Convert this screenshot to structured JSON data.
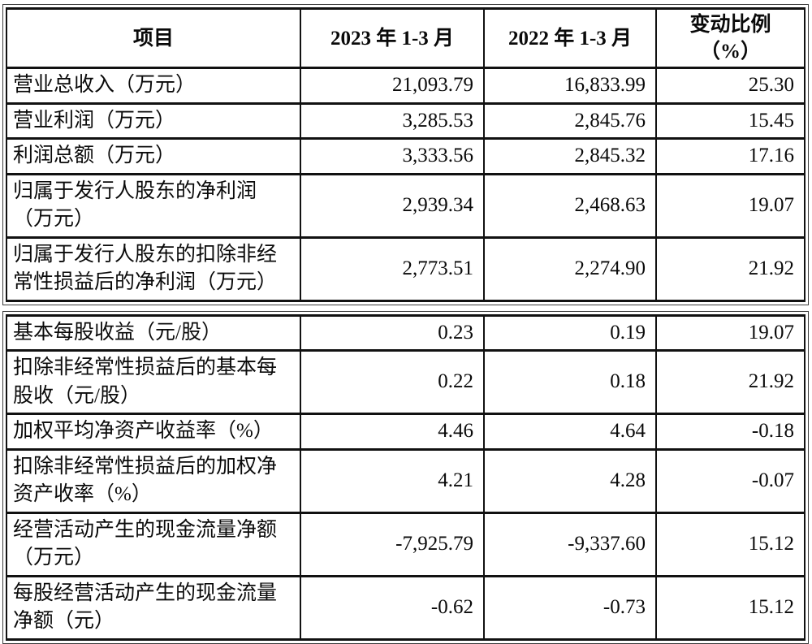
{
  "colors": {
    "grid_border": "#111111",
    "outer_border": "#3d3d3d",
    "text": "#0a0a0a",
    "background": "#ffffff"
  },
  "table1": {
    "columns": [
      "项目",
      "2023 年 1-3 月",
      "2022 年 1-3 月",
      "变动比例\n（%）"
    ],
    "rows": [
      {
        "label": "营业总收入（万元）",
        "y2023": "21,093.79",
        "y2022": "16,833.99",
        "change": "25.30"
      },
      {
        "label": "营业利润（万元）",
        "y2023": "3,285.53",
        "y2022": "2,845.76",
        "change": "15.45"
      },
      {
        "label": "利润总额（万元）",
        "y2023": "3,333.56",
        "y2022": "2,845.32",
        "change": "17.16"
      },
      {
        "label": "归属于发行人股东的净利润\n（万元）",
        "y2023": "2,939.34",
        "y2022": "2,468.63",
        "change": "19.07"
      },
      {
        "label": "归属于发行人股东的扣除非经\n常性损益后的净利润（万元）",
        "y2023": "2,773.51",
        "y2022": "2,274.90",
        "change": "21.92"
      }
    ]
  },
  "table2": {
    "rows": [
      {
        "label": "基本每股收益（元/股）",
        "y2023": "0.23",
        "y2022": "0.19",
        "change": "19.07"
      },
      {
        "label": "扣除非经常性损益后的基本每\n股收（元/股）",
        "y2023": "0.22",
        "y2022": "0.18",
        "change": "21.92"
      },
      {
        "label": "加权平均净资产收益率（%）",
        "y2023": "4.46",
        "y2022": "4.64",
        "change": "-0.18"
      },
      {
        "label": "扣除非经常性损益后的加权净\n资产收率（%）",
        "y2023": "4.21",
        "y2022": "4.28",
        "change": "-0.07"
      },
      {
        "label": "经营活动产生的现金流量净额\n（万元）",
        "y2023": "-7,925.79",
        "y2022": "-9,337.60",
        "change": "15.12"
      },
      {
        "label": "每股经营活动产生的现金流量\n净额（元）",
        "y2023": "-0.62",
        "y2022": "-0.73",
        "change": "15.12"
      }
    ]
  }
}
